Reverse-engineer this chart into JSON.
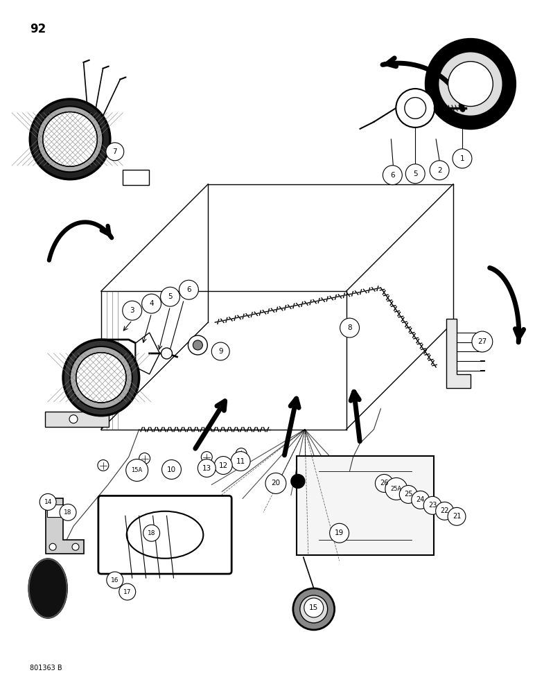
{
  "page_number": "92",
  "bottom_left_text": "801363 B",
  "background_color": "#ffffff",
  "text_color": "#000000",
  "page_width": 7.72,
  "page_height": 10.0,
  "dpi": 100,
  "figsize": [
    7.72,
    10.0
  ]
}
